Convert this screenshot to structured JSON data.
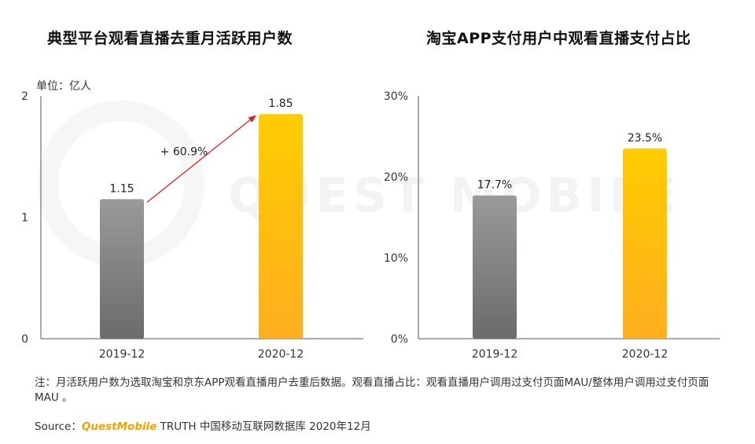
{
  "watermark": "QUEST MOBILE",
  "unit_label": "单位：亿人",
  "note": "注：月活跃用户数为选取淘宝和京东APP观看直播用户去重后数据。观看直播占比：观看直播用户调用过支付页面MAU/整体用户调用过支付页面MAU 。",
  "source": {
    "prefix": "Source：",
    "brand": "QuestMobile",
    "rest": " TRUTH 中国移动互联网数据库 2020年12月"
  },
  "colors": {
    "gray_top": "#9a9a9a",
    "gray_bottom": "#6b6b6b",
    "gold_top": "#FFCC00",
    "gold_bottom": "#FFAE1F",
    "arrow": "#E02020"
  },
  "chart_data": [
    {
      "type": "bar",
      "title": "典型平台观看直播去重月活跃用户数",
      "categories": [
        "2019-12",
        "2020-12"
      ],
      "values": [
        1.15,
        1.85
      ],
      "labels": [
        "1.15",
        "1.85"
      ],
      "ylim": [
        0,
        2
      ],
      "yticks": [
        0,
        1,
        2
      ],
      "ytick_labels": [
        "0",
        "1",
        "2"
      ],
      "ylabel": "",
      "annotation": "+ 60.9%"
    },
    {
      "type": "bar",
      "title": "淘宝APP支付用户中观看直播支付占比",
      "categories": [
        "2019-12",
        "2020-12"
      ],
      "values": [
        17.7,
        23.5
      ],
      "labels": [
        "17.7%",
        "23.5%"
      ],
      "ylim": [
        0,
        30
      ],
      "yticks": [
        0,
        10,
        20,
        30
      ],
      "ytick_labels": [
        "0%",
        "10%",
        "20%",
        "30%"
      ],
      "ylabel": ""
    }
  ]
}
